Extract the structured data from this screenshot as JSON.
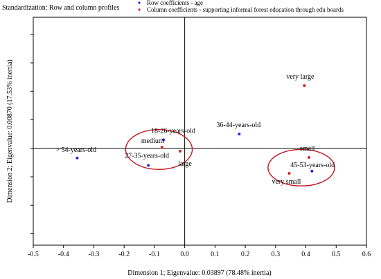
{
  "chart_data": {
    "type": "scatter",
    "header": "Standardization: Row  and column profiles",
    "xlabel": "Dimension 1; Eigenvalue: 0.03897 (78.48% inertia)",
    "ylabel": "Dimension 2; Eigenvalue: 0.00870 (17.53% inertia)",
    "xlim": [
      -0.5,
      0.6
    ],
    "ylim": [
      -0.17,
      0.23
    ],
    "xticks": [
      -0.5,
      -0.4,
      -0.3,
      -0.2,
      -0.1,
      0.0,
      0.1,
      0.2,
      0.3,
      0.4,
      0.5,
      0.6
    ],
    "xtick_labels": [
      "-0.5",
      "-0.4",
      "-0.3",
      "-0.2",
      "-0.1",
      "0.0",
      "0.1",
      "0.2",
      "0.3",
      "0.4",
      "0.5",
      "0.6"
    ],
    "yticks": [
      -0.15,
      -0.1,
      -0.05,
      0.0,
      0.05,
      0.1,
      0.15,
      0.2
    ],
    "grid": false,
    "reference_lines": {
      "x": 0,
      "y": 0
    },
    "legend_position": "top",
    "series": [
      {
        "name": "Row coefficients - age",
        "color": "#1f2bd9",
        "points": [
          {
            "label": "18-26-years-old",
            "x": -0.07,
            "y": 0.015
          },
          {
            "label": "27-35-years-old",
            "x": -0.12,
            "y": -0.03
          },
          {
            "label": "36-44-years-old",
            "x": 0.18,
            "y": 0.025
          },
          {
            "label": "45-53-years-old",
            "x": 0.42,
            "y": -0.04
          },
          {
            "label": "> 54-years-old",
            "x": -0.355,
            "y": -0.017
          }
        ]
      },
      {
        "name": "Column coefficients - supporting informal forest education through edu boards",
        "color": "#e0201c",
        "points": [
          {
            "label": "very large",
            "x": 0.395,
            "y": 0.11
          },
          {
            "label": "medium",
            "x": -0.075,
            "y": 0.002
          },
          {
            "label": "large",
            "x": -0.015,
            "y": -0.005
          },
          {
            "label": "small",
            "x": 0.41,
            "y": -0.016
          },
          {
            "label": "very small",
            "x": 0.345,
            "y": -0.044
          }
        ]
      }
    ],
    "ellipses": [
      {
        "cx": -0.085,
        "cy": -0.002,
        "rx": 0.11,
        "ry": 0.035,
        "color": "#c0141c"
      },
      {
        "cx": 0.385,
        "cy": -0.034,
        "rx": 0.11,
        "ry": 0.032,
        "color": "#c0141c"
      }
    ]
  }
}
